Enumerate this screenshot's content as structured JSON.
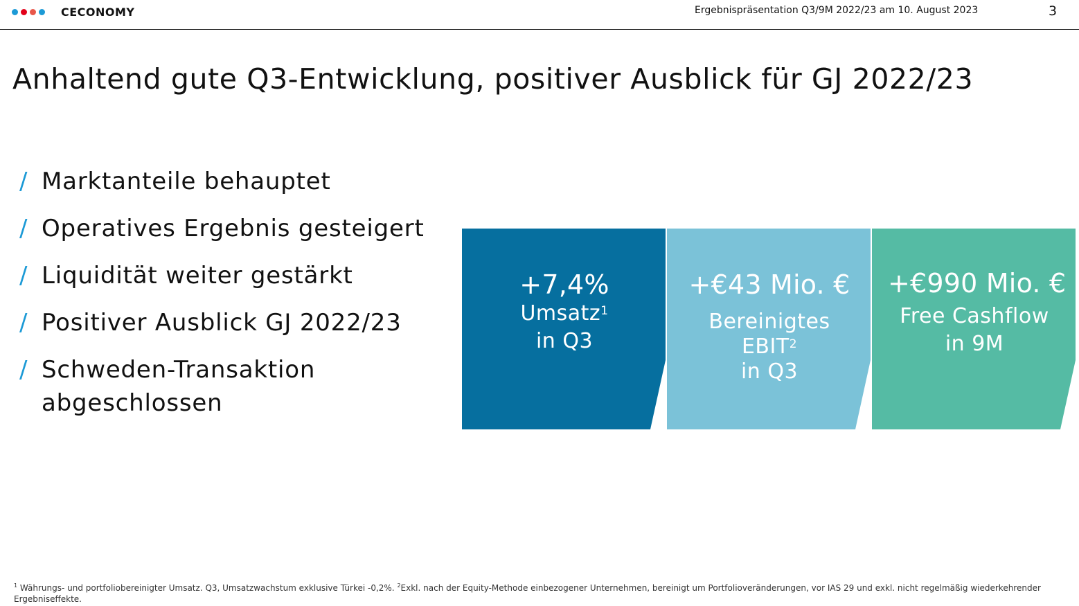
{
  "header": {
    "logo_text": "CECONOMY",
    "logo_dot_colors": [
      "#1c9ad6",
      "#e2001a",
      "#e8574a",
      "#1c9ad6"
    ],
    "presentation_title": "Ergebnispräsentation Q3/9M 2022/23 am 10. August 2023",
    "page_number": "3"
  },
  "title": "Anhaltend gute Q3-Entwicklung, positiver Ausblick für GJ 2022/23",
  "bullet_marker": "/",
  "bullets": [
    {
      "text": "Marktanteile behauptet"
    },
    {
      "text": "Operatives Ergebnis gesteigert"
    },
    {
      "text": "Liquidität weiter gestärkt"
    },
    {
      "text": "Positiver Ausblick GJ 2022/23"
    },
    {
      "text": "Schweden-Transaktion abgeschlossen"
    }
  ],
  "kpis": [
    {
      "value": "+7,4%",
      "label_line1": "Umsatz",
      "label_sup1": "1",
      "label_line2": "",
      "label_sup2": "",
      "label_line3": "in Q3",
      "color": "#066f9f"
    },
    {
      "value": "+€43 Mio. €",
      "label_line1": "Bereinigtes",
      "label_sup1": "",
      "label_line2": "EBIT",
      "label_sup2": "2",
      "label_line3": "in Q3",
      "color": "#7bc2d8"
    },
    {
      "value": "+€990 Mio. €",
      "label_line1": "Free Cashflow",
      "label_sup1": "",
      "label_line2": "",
      "label_sup2": "",
      "label_line3": "in 9M",
      "color": "#55bba4"
    }
  ],
  "footnotes": {
    "marker1": "1",
    "text1": "Währungs- und portfoliobereinigter Umsatz. Q3, Umsatzwachstum exklusive Türkei  -0,2%. ",
    "marker2": "2",
    "text2": "Exkl. nach der Equity-Methode einbezogener Unternehmen, bereinigt um Portfolioveränderungen, vor IAS 29 und exkl. nicht regelmäßig wiederkehrender Ergebniseffekte."
  }
}
